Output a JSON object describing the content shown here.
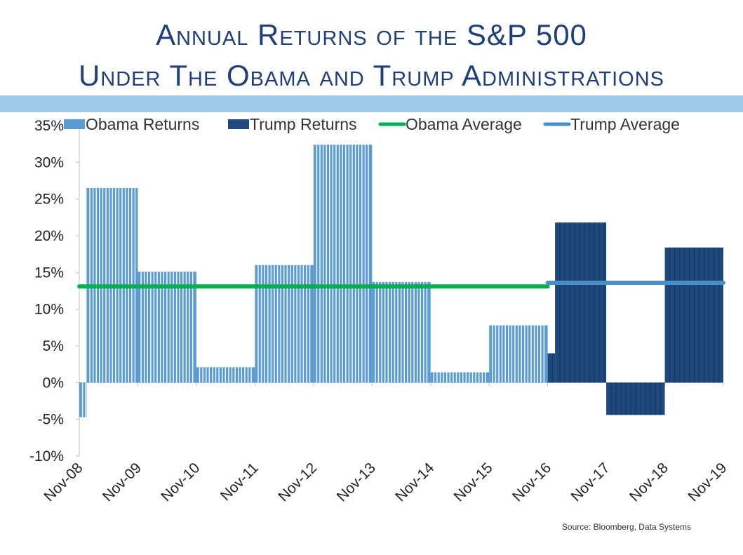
{
  "title_line1": "Annual Returns of the S&P 500",
  "title_line2": "Under The Obama and Trump Administrations",
  "source": "Source:  Bloomberg, Data Systems",
  "colors": {
    "obama_returns": "#5b9bd5",
    "trump_returns": "#1f497d",
    "obama_average": "#00b050",
    "trump_average": "#4a90c8",
    "band": "#9fcbea",
    "title": "#1f3f7a"
  },
  "chart_data": {
    "type": "bar",
    "x_tick_labels": [
      "Nov-08",
      "Nov-09",
      "Nov-10",
      "Nov-11",
      "Nov-12",
      "Nov-13",
      "Nov-14",
      "Nov-15",
      "Nov-16",
      "Nov-17",
      "Nov-18",
      "Nov-19"
    ],
    "y_tick_labels": [
      "35%",
      "30%",
      "25%",
      "20%",
      "15%",
      "10%",
      "5%",
      "0%",
      "-5%",
      "-10%"
    ],
    "ylim": [
      -10,
      35
    ],
    "y_unit": "%",
    "legend_position": "top",
    "series": [
      {
        "name": "Obama Returns",
        "segments": [
          {
            "from": "Nov-08",
            "to": "Nov-08+",
            "value": -4.7
          },
          {
            "from": "Nov-08+",
            "to": "Nov-09",
            "value": 26.5
          },
          {
            "from": "Nov-09",
            "to": "Nov-10",
            "value": 15.1
          },
          {
            "from": "Nov-10",
            "to": "Nov-11",
            "value": 2.1
          },
          {
            "from": "Nov-11",
            "to": "Nov-12",
            "value": 16.0
          },
          {
            "from": "Nov-12",
            "to": "Nov-13",
            "value": 32.4
          },
          {
            "from": "Nov-13",
            "to": "Nov-14",
            "value": 13.7
          },
          {
            "from": "Nov-14",
            "to": "Nov-15",
            "value": 1.4
          },
          {
            "from": "Nov-15",
            "to": "Nov-16",
            "value": 7.8
          }
        ]
      },
      {
        "name": "Trump Returns",
        "segments": [
          {
            "from": "Nov-16",
            "to": "Nov-16+",
            "value": 4.0
          },
          {
            "from": "Nov-16+",
            "to": "Nov-17",
            "value": 21.8
          },
          {
            "from": "Nov-17",
            "to": "Nov-18",
            "value": -4.4
          },
          {
            "from": "Nov-18",
            "to": "Nov-19",
            "value": 18.4
          }
        ]
      },
      {
        "name": "Obama Average",
        "type": "line",
        "from": "Nov-08",
        "to": "Nov-16",
        "value": 13.1
      },
      {
        "name": "Trump Average",
        "type": "line",
        "from": "Nov-16",
        "to": "Nov-19",
        "value": 13.6
      }
    ]
  }
}
